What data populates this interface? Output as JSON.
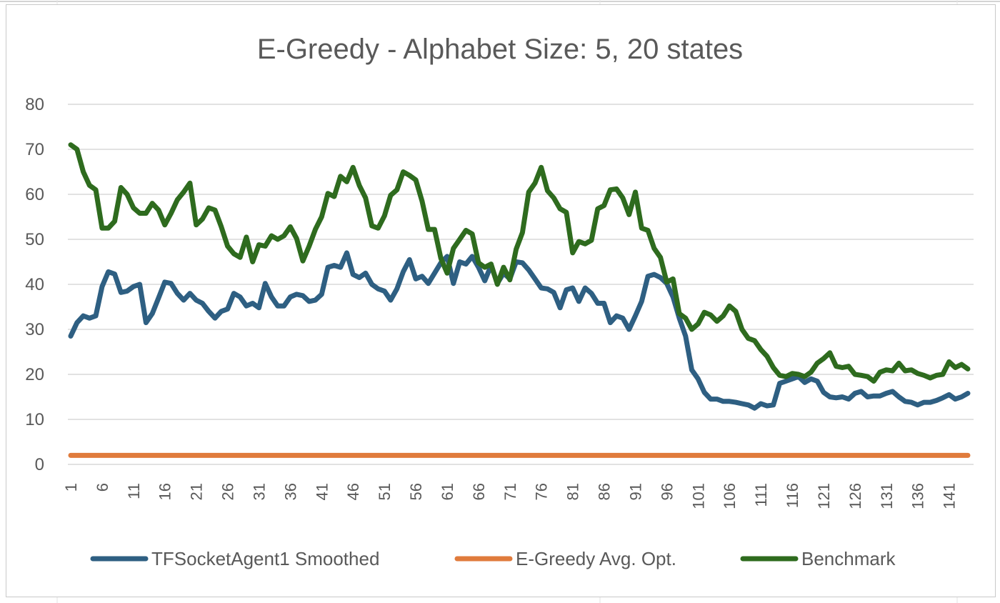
{
  "chart_data": {
    "type": "line",
    "title": "E-Greedy - Alphabet Size: 5, 20 states",
    "xlabel": "",
    "ylabel": "",
    "ylim": [
      0,
      80
    ],
    "yticks": [
      "0",
      "10",
      "20",
      "30",
      "40",
      "50",
      "60",
      "70",
      "80"
    ],
    "xticks": [
      "1",
      "6",
      "11",
      "16",
      "21",
      "26",
      "31",
      "36",
      "41",
      "46",
      "51",
      "56",
      "61",
      "66",
      "71",
      "76",
      "81",
      "86",
      "91",
      "96",
      "101",
      "106",
      "111",
      "116",
      "121",
      "126",
      "131",
      "136",
      "141"
    ],
    "x_count": 144,
    "grid": "horizontal",
    "legend_position": "bottom",
    "series": [
      {
        "name": "TFSocketAgent1 Smoothed",
        "color": "#2e5f82",
        "points": [
          [
            1,
            28.5
          ],
          [
            2,
            31.5
          ],
          [
            3,
            33
          ],
          [
            4,
            32.5
          ],
          [
            5,
            33
          ],
          [
            6,
            39.5
          ],
          [
            7,
            42.8
          ],
          [
            8,
            42.3
          ],
          [
            9,
            38.2
          ],
          [
            10,
            38.5
          ],
          [
            11,
            39.5
          ],
          [
            12,
            40
          ],
          [
            13,
            31.5
          ],
          [
            14,
            33.5
          ],
          [
            15,
            37
          ],
          [
            16,
            40.5
          ],
          [
            17,
            40.2
          ],
          [
            18,
            38
          ],
          [
            19,
            36.5
          ],
          [
            20,
            38
          ],
          [
            21,
            36.5
          ],
          [
            22,
            35.8
          ],
          [
            23,
            34
          ],
          [
            24,
            32.5
          ],
          [
            25,
            34
          ],
          [
            26,
            34.5
          ],
          [
            27,
            38
          ],
          [
            28,
            37.2
          ],
          [
            29,
            35.2
          ],
          [
            30,
            35.8
          ],
          [
            31,
            34.8
          ],
          [
            32,
            40.2
          ],
          [
            33,
            37.2
          ],
          [
            34,
            35.2
          ],
          [
            35,
            35.2
          ],
          [
            36,
            37.2
          ],
          [
            37,
            37.8
          ],
          [
            38,
            37.5
          ],
          [
            39,
            36.2
          ],
          [
            40,
            36.5
          ],
          [
            41,
            37.8
          ],
          [
            42,
            43.8
          ],
          [
            43,
            44.2
          ],
          [
            44,
            43.8
          ],
          [
            45,
            47
          ],
          [
            46,
            42.2
          ],
          [
            47,
            41.5
          ],
          [
            48,
            42.5
          ],
          [
            49,
            40
          ],
          [
            50,
            39
          ],
          [
            51,
            38.5
          ],
          [
            52,
            36.5
          ],
          [
            53,
            39
          ],
          [
            54,
            42.8
          ],
          [
            55,
            45.5
          ],
          [
            56,
            41.2
          ],
          [
            57,
            41.8
          ],
          [
            58,
            40.2
          ],
          [
            59,
            42.5
          ],
          [
            60,
            44.8
          ],
          [
            61,
            46.2
          ],
          [
            62,
            40.2
          ],
          [
            63,
            45
          ],
          [
            64,
            44.5
          ],
          [
            65,
            46.2
          ],
          [
            66,
            43.8
          ],
          [
            67,
            40.8
          ],
          [
            68,
            44.2
          ],
          [
            69,
            40.2
          ],
          [
            70,
            42.5
          ],
          [
            71,
            41.2
          ],
          [
            72,
            45
          ],
          [
            73,
            44.8
          ],
          [
            74,
            43.2
          ],
          [
            75,
            41.2
          ],
          [
            76,
            39.2
          ],
          [
            77,
            39
          ],
          [
            78,
            38.2
          ],
          [
            79,
            34.8
          ],
          [
            80,
            38.8
          ],
          [
            81,
            39.2
          ],
          [
            82,
            36.2
          ],
          [
            83,
            39.2
          ],
          [
            84,
            38
          ],
          [
            85,
            35.8
          ],
          [
            86,
            35.8
          ],
          [
            87,
            31.5
          ],
          [
            88,
            33
          ],
          [
            89,
            32.5
          ],
          [
            90,
            30
          ],
          [
            91,
            33
          ],
          [
            92,
            36.2
          ],
          [
            93,
            41.8
          ],
          [
            94,
            42.2
          ],
          [
            95,
            41.5
          ],
          [
            96,
            40.2
          ],
          [
            97,
            37.2
          ],
          [
            98,
            32.5
          ],
          [
            99,
            28.5
          ],
          [
            100,
            21
          ],
          [
            101,
            19
          ],
          [
            102,
            16
          ],
          [
            103,
            14.5
          ],
          [
            104,
            14.5
          ],
          [
            105,
            14
          ],
          [
            106,
            14
          ],
          [
            107,
            13.8
          ],
          [
            108,
            13.5
          ],
          [
            109,
            13.2
          ],
          [
            110,
            12.5
          ],
          [
            111,
            13.5
          ],
          [
            112,
            13
          ],
          [
            113,
            13.2
          ],
          [
            114,
            18
          ],
          [
            115,
            18.5
          ],
          [
            116,
            19
          ],
          [
            117,
            19.5
          ],
          [
            118,
            18.2
          ],
          [
            119,
            19
          ],
          [
            120,
            18.5
          ],
          [
            121,
            16
          ],
          [
            122,
            15
          ],
          [
            123,
            14.8
          ],
          [
            124,
            15
          ],
          [
            125,
            14.5
          ],
          [
            126,
            15.8
          ],
          [
            127,
            16.2
          ],
          [
            128,
            15
          ],
          [
            129,
            15.2
          ],
          [
            130,
            15.2
          ],
          [
            131,
            15.8
          ],
          [
            132,
            16.2
          ],
          [
            133,
            15
          ],
          [
            134,
            14
          ],
          [
            135,
            13.8
          ],
          [
            136,
            13.2
          ],
          [
            137,
            13.8
          ],
          [
            138,
            13.8
          ],
          [
            139,
            14.2
          ],
          [
            140,
            14.8
          ],
          [
            141,
            15.5
          ],
          [
            142,
            14.5
          ],
          [
            143,
            15
          ],
          [
            144,
            15.8
          ]
        ]
      },
      {
        "name": "E-Greedy Avg. Opt.",
        "color": "#e07b3c",
        "points": [
          [
            1,
            2
          ],
          [
            144,
            2
          ]
        ]
      },
      {
        "name": "Benchmark",
        "color": "#2e6b1e",
        "points": [
          [
            1,
            71
          ],
          [
            2,
            70
          ],
          [
            3,
            65
          ],
          [
            4,
            62
          ],
          [
            5,
            61
          ],
          [
            6,
            52.5
          ],
          [
            7,
            52.5
          ],
          [
            8,
            54
          ],
          [
            9,
            61.5
          ],
          [
            10,
            60
          ],
          [
            11,
            57
          ],
          [
            12,
            55.8
          ],
          [
            13,
            55.8
          ],
          [
            14,
            58
          ],
          [
            15,
            56.5
          ],
          [
            16,
            53.2
          ],
          [
            17,
            55.8
          ],
          [
            18,
            58.8
          ],
          [
            19,
            60.5
          ],
          [
            20,
            62.5
          ],
          [
            21,
            53.2
          ],
          [
            22,
            54.5
          ],
          [
            23,
            57
          ],
          [
            24,
            56.5
          ],
          [
            25,
            52.8
          ],
          [
            26,
            48.5
          ],
          [
            27,
            46.8
          ],
          [
            28,
            46
          ],
          [
            29,
            50.5
          ],
          [
            30,
            45
          ],
          [
            31,
            48.8
          ],
          [
            32,
            48.5
          ],
          [
            33,
            50.8
          ],
          [
            34,
            50
          ],
          [
            35,
            50.8
          ],
          [
            36,
            52.8
          ],
          [
            37,
            50.2
          ],
          [
            38,
            45.2
          ],
          [
            39,
            48.5
          ],
          [
            40,
            52.2
          ],
          [
            41,
            55
          ],
          [
            42,
            60.2
          ],
          [
            43,
            59.5
          ],
          [
            44,
            64
          ],
          [
            45,
            62.8
          ],
          [
            46,
            66
          ],
          [
            47,
            62
          ],
          [
            48,
            59.2
          ],
          [
            49,
            53
          ],
          [
            50,
            52.5
          ],
          [
            51,
            55.2
          ],
          [
            52,
            59.8
          ],
          [
            53,
            61
          ],
          [
            54,
            65
          ],
          [
            55,
            64.2
          ],
          [
            56,
            63.2
          ],
          [
            57,
            58.5
          ],
          [
            58,
            52.2
          ],
          [
            59,
            52.2
          ],
          [
            60,
            45.8
          ],
          [
            61,
            42.5
          ],
          [
            62,
            48
          ],
          [
            63,
            50
          ],
          [
            64,
            52
          ],
          [
            65,
            51.2
          ],
          [
            66,
            44.8
          ],
          [
            67,
            43.8
          ],
          [
            68,
            44.5
          ],
          [
            69,
            40
          ],
          [
            70,
            43.8
          ],
          [
            71,
            41
          ],
          [
            72,
            47.8
          ],
          [
            73,
            51.5
          ],
          [
            74,
            60.5
          ],
          [
            75,
            62.5
          ],
          [
            76,
            66
          ],
          [
            77,
            60.8
          ],
          [
            78,
            59.2
          ],
          [
            79,
            56.8
          ],
          [
            80,
            56
          ],
          [
            81,
            47
          ],
          [
            82,
            49.5
          ],
          [
            83,
            49
          ],
          [
            84,
            49.8
          ],
          [
            85,
            56.8
          ],
          [
            86,
            57.5
          ],
          [
            87,
            61
          ],
          [
            88,
            61.2
          ],
          [
            89,
            59.2
          ],
          [
            90,
            55.5
          ],
          [
            91,
            60.5
          ],
          [
            92,
            52.5
          ],
          [
            93,
            52
          ],
          [
            94,
            48
          ],
          [
            95,
            46
          ],
          [
            96,
            40.5
          ],
          [
            97,
            41.2
          ],
          [
            98,
            33.5
          ],
          [
            99,
            32.5
          ],
          [
            100,
            30
          ],
          [
            101,
            31.2
          ],
          [
            102,
            33.8
          ],
          [
            103,
            33.2
          ],
          [
            104,
            31.8
          ],
          [
            105,
            33
          ],
          [
            106,
            35.2
          ],
          [
            107,
            34
          ],
          [
            108,
            30
          ],
          [
            109,
            28
          ],
          [
            110,
            27.5
          ],
          [
            111,
            25.5
          ],
          [
            112,
            24
          ],
          [
            113,
            21.5
          ],
          [
            114,
            19.8
          ],
          [
            115,
            19.5
          ],
          [
            116,
            20.2
          ],
          [
            117,
            20
          ],
          [
            118,
            19.5
          ],
          [
            119,
            20.5
          ],
          [
            120,
            22.5
          ],
          [
            121,
            23.5
          ],
          [
            122,
            24.8
          ],
          [
            123,
            21.8
          ],
          [
            124,
            21.5
          ],
          [
            125,
            21.8
          ],
          [
            126,
            20
          ],
          [
            127,
            19.8
          ],
          [
            128,
            19.5
          ],
          [
            129,
            18.5
          ],
          [
            130,
            20.5
          ],
          [
            131,
            21
          ],
          [
            132,
            20.8
          ],
          [
            133,
            22.5
          ],
          [
            134,
            20.8
          ],
          [
            135,
            21
          ],
          [
            136,
            20.2
          ],
          [
            137,
            19.8
          ],
          [
            138,
            19.2
          ],
          [
            139,
            19.8
          ],
          [
            140,
            20
          ],
          [
            141,
            22.8
          ],
          [
            142,
            21.5
          ],
          [
            143,
            22.2
          ],
          [
            144,
            21.2
          ]
        ]
      }
    ]
  }
}
